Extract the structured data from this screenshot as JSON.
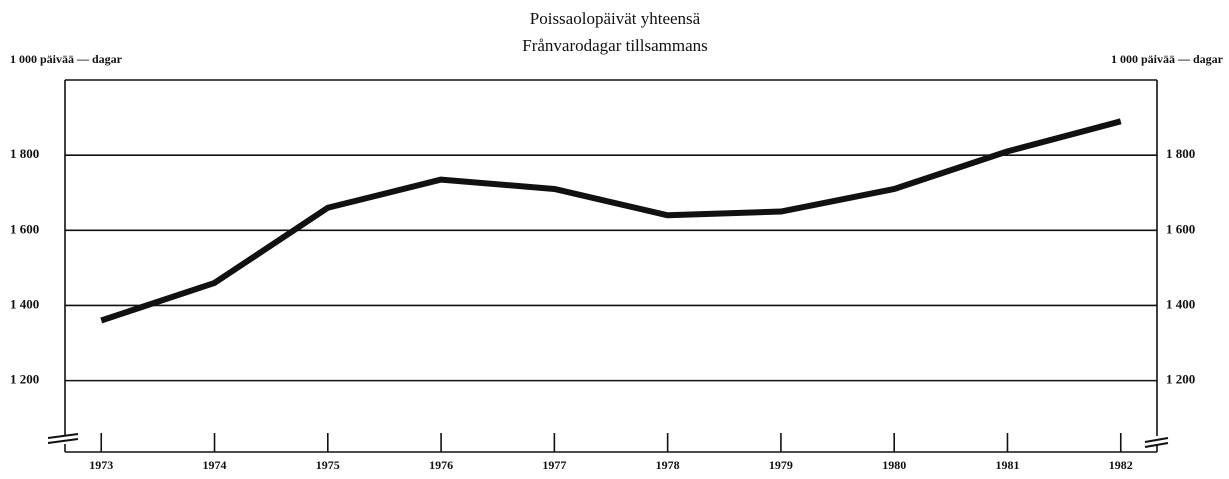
{
  "chart_data": {
    "type": "line",
    "title": "Poissaolopäivät yhteensä",
    "subtitle": "Frånvarodagar tillsammans",
    "ylabel": "1 000 päivää — dagar",
    "x": [
      1973,
      1974,
      1975,
      1976,
      1977,
      1978,
      1979,
      1980,
      1981,
      1982
    ],
    "series": [
      {
        "name": "Poissaolopäivät yhteensä",
        "color": "#111111",
        "values": [
          1360,
          1460,
          1660,
          1735,
          1710,
          1640,
          1650,
          1710,
          1810,
          1890
        ]
      }
    ],
    "xlim": [
      1972.68,
      1982.32
    ],
    "xticks": [
      1973,
      1974,
      1975,
      1976,
      1977,
      1978,
      1979,
      1980,
      1981,
      1982
    ],
    "ylim": [
      1050,
      2000
    ],
    "yticks": [
      {
        "value": 1200,
        "label": "1 200"
      },
      {
        "value": 1400,
        "label": "1 400"
      },
      {
        "value": 1600,
        "label": "1 600"
      },
      {
        "value": 1800,
        "label": "1 800"
      }
    ],
    "grid": true
  }
}
